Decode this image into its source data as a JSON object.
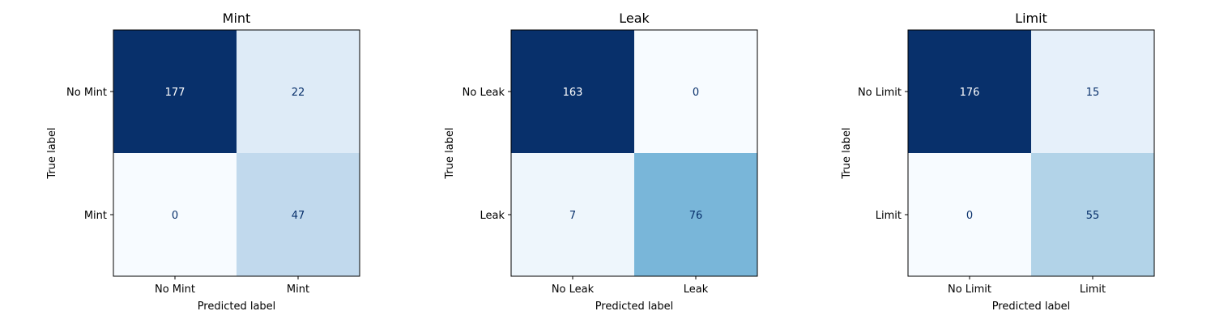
{
  "chart_data": [
    {
      "type": "heatmap",
      "title": "Mint",
      "xlabel": "Predicted label",
      "ylabel": "True label",
      "x_categories": [
        "No Mint",
        "Mint"
      ],
      "y_categories": [
        "No Mint",
        "Mint"
      ],
      "values": [
        [
          177,
          22
        ],
        [
          0,
          47
        ]
      ],
      "colormap": "Blues",
      "grid": false
    },
    {
      "type": "heatmap",
      "title": "Leak",
      "xlabel": "Predicted label",
      "ylabel": "True label",
      "x_categories": [
        "No Leak",
        "Leak"
      ],
      "y_categories": [
        "No Leak",
        "Leak"
      ],
      "values": [
        [
          163,
          0
        ],
        [
          7,
          76
        ]
      ],
      "colormap": "Blues",
      "grid": false
    },
    {
      "type": "heatmap",
      "title": "Limit",
      "xlabel": "Predicted label",
      "ylabel": "True label",
      "x_categories": [
        "No Limit",
        "Limit"
      ],
      "y_categories": [
        "No Limit",
        "Limit"
      ],
      "values": [
        [
          176,
          15
        ],
        [
          0,
          55
        ]
      ],
      "colormap": "Blues",
      "grid": false
    }
  ]
}
